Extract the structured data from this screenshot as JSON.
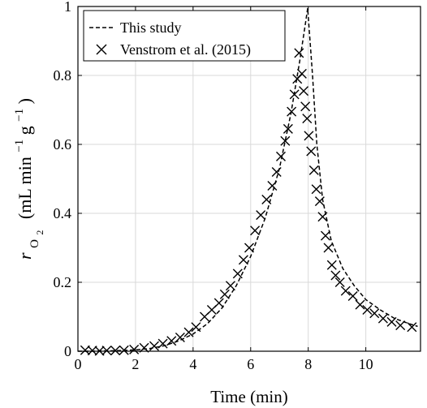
{
  "chart_data": {
    "type": "line",
    "xlabel": "Time (min)",
    "ylabel": {
      "r": "r",
      "sub": "O",
      "subsub": "2",
      "unit_open": "(mL min",
      "exp1": "−1",
      "unit_mid": " g",
      "exp2": "−1",
      "unit_close": ")"
    },
    "xlim": [
      0,
      11.9
    ],
    "ylim": [
      0,
      1
    ],
    "xticks": [
      0,
      2,
      4,
      6,
      8,
      10
    ],
    "xtick_labels": [
      "0",
      "2",
      "4",
      "6",
      "8",
      "10"
    ],
    "yticks": [
      0,
      0.2,
      0.4,
      0.6,
      0.8,
      1
    ],
    "ytick_labels": [
      "0",
      "0.2",
      "0.4",
      "0.6",
      "0.8",
      "1"
    ],
    "grid": true,
    "legend_position": "top-left",
    "series": [
      {
        "name": "This study",
        "style": "dashed-line",
        "color": "#000000",
        "points": [
          [
            0,
            0.0
          ],
          [
            0.5,
            0.0
          ],
          [
            1.0,
            0.001
          ],
          [
            1.5,
            0.002
          ],
          [
            2.0,
            0.004
          ],
          [
            2.5,
            0.008
          ],
          [
            3.0,
            0.016
          ],
          [
            3.5,
            0.03
          ],
          [
            4.0,
            0.05
          ],
          [
            4.5,
            0.08
          ],
          [
            5.0,
            0.125
          ],
          [
            5.5,
            0.19
          ],
          [
            6.0,
            0.275
          ],
          [
            6.5,
            0.385
          ],
          [
            7.0,
            0.53
          ],
          [
            7.4,
            0.69
          ],
          [
            7.7,
            0.84
          ],
          [
            7.9,
            0.95
          ],
          [
            7.98,
            0.995
          ],
          [
            8.15,
            0.8
          ],
          [
            8.3,
            0.6
          ],
          [
            8.5,
            0.44
          ],
          [
            8.8,
            0.32
          ],
          [
            9.2,
            0.24
          ],
          [
            9.6,
            0.19
          ],
          [
            10.0,
            0.15
          ],
          [
            10.5,
            0.12
          ],
          [
            11.0,
            0.095
          ],
          [
            11.5,
            0.08
          ],
          [
            11.8,
            0.072
          ]
        ]
      },
      {
        "name": "Venstrom et al. (2015)",
        "style": "x-marker",
        "color": "#000000",
        "points": [
          [
            0.25,
            0.003
          ],
          [
            0.5,
            0.002
          ],
          [
            0.75,
            0.001
          ],
          [
            1.0,
            0.002
          ],
          [
            1.3,
            0.002
          ],
          [
            1.6,
            0.003
          ],
          [
            1.95,
            0.005
          ],
          [
            2.3,
            0.01
          ],
          [
            2.65,
            0.015
          ],
          [
            2.95,
            0.022
          ],
          [
            3.25,
            0.03
          ],
          [
            3.55,
            0.04
          ],
          [
            3.85,
            0.055
          ],
          [
            4.1,
            0.07
          ],
          [
            4.4,
            0.1
          ],
          [
            4.65,
            0.12
          ],
          [
            4.9,
            0.14
          ],
          [
            5.1,
            0.165
          ],
          [
            5.3,
            0.19
          ],
          [
            5.55,
            0.225
          ],
          [
            5.75,
            0.265
          ],
          [
            5.95,
            0.3
          ],
          [
            6.15,
            0.35
          ],
          [
            6.35,
            0.395
          ],
          [
            6.55,
            0.44
          ],
          [
            6.75,
            0.48
          ],
          [
            6.9,
            0.52
          ],
          [
            7.05,
            0.565
          ],
          [
            7.2,
            0.61
          ],
          [
            7.3,
            0.645
          ],
          [
            7.42,
            0.695
          ],
          [
            7.52,
            0.745
          ],
          [
            7.62,
            0.79
          ],
          [
            7.68,
            0.865
          ],
          [
            7.78,
            0.805
          ],
          [
            7.84,
            0.755
          ],
          [
            7.9,
            0.71
          ],
          [
            7.96,
            0.675
          ],
          [
            8.02,
            0.625
          ],
          [
            8.1,
            0.58
          ],
          [
            8.2,
            0.525
          ],
          [
            8.28,
            0.47
          ],
          [
            8.4,
            0.435
          ],
          [
            8.5,
            0.39
          ],
          [
            8.6,
            0.335
          ],
          [
            8.7,
            0.3
          ],
          [
            8.82,
            0.25
          ],
          [
            8.95,
            0.22
          ],
          [
            9.1,
            0.2
          ],
          [
            9.3,
            0.175
          ],
          [
            9.55,
            0.16
          ],
          [
            9.8,
            0.135
          ],
          [
            10.05,
            0.12
          ],
          [
            10.3,
            0.11
          ],
          [
            10.6,
            0.095
          ],
          [
            10.9,
            0.085
          ],
          [
            11.2,
            0.075
          ],
          [
            11.6,
            0.07
          ]
        ]
      }
    ]
  }
}
